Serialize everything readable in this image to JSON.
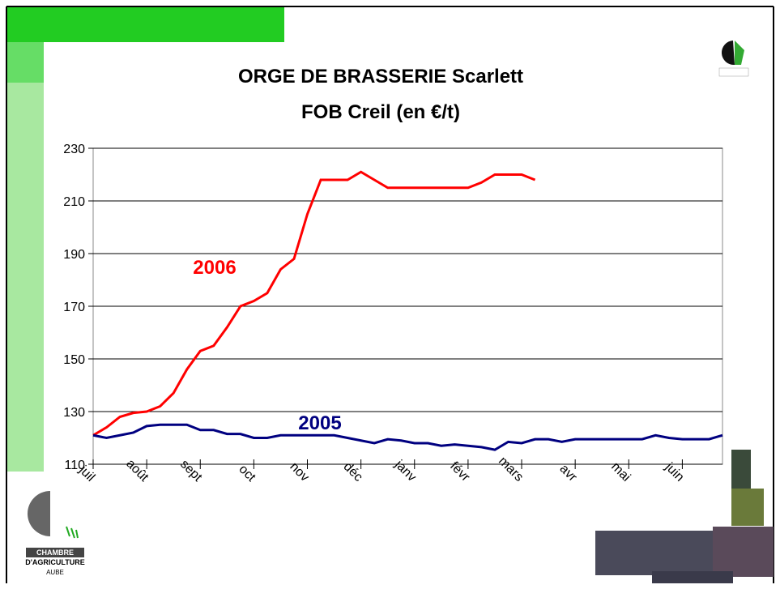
{
  "chart_data": {
    "type": "line",
    "title": "ORGE DE BRASSERIE Scarlett",
    "subtitle": "FOB Creil (en €/t)",
    "x": [
      0,
      0.25,
      0.5,
      0.75,
      1,
      1.25,
      1.5,
      1.75,
      2,
      2.25,
      2.5,
      2.75,
      3,
      3.25,
      3.5,
      3.75,
      4,
      4.25,
      4.5,
      4.75,
      5,
      5.25,
      5.5,
      5.75,
      6,
      6.25,
      6.5,
      6.75,
      7,
      7.25,
      7.5,
      7.75,
      8,
      8.25,
      8.5,
      8.75,
      9,
      9.25,
      9.5,
      9.75,
      10,
      10.25,
      10.5,
      10.75,
      11,
      11.25,
      11.5,
      11.75
    ],
    "series": [
      {
        "name": "2006",
        "color": "#ff0000",
        "values": [
          121,
          124,
          128,
          129.5,
          130,
          132,
          137,
          146,
          153,
          155,
          162,
          170,
          172,
          175,
          184,
          188,
          205,
          218,
          218,
          218,
          221,
          218,
          215,
          215,
          215,
          215,
          215,
          215,
          215,
          217,
          220,
          220,
          220,
          218,
          null,
          null,
          null,
          null,
          null,
          null,
          null,
          null,
          null,
          null,
          null,
          null,
          null,
          null
        ]
      },
      {
        "name": "2005",
        "color": "#000080",
        "values": [
          121,
          120,
          121,
          122,
          124.5,
          125,
          125,
          125,
          123,
          123,
          121.5,
          121.5,
          120,
          120,
          121,
          121,
          121,
          121,
          121,
          120,
          119,
          118,
          119.5,
          119,
          118,
          118,
          117,
          117.5,
          117,
          116.5,
          115.5,
          118.5,
          118,
          119.5,
          119.5,
          118.5,
          119.5,
          119.5,
          119.5,
          119.5,
          119.5,
          119.5,
          121,
          120,
          119.5,
          119.5,
          119.5,
          121
        ]
      }
    ],
    "xlim": [
      0,
      11.75
    ],
    "xticks": [
      {
        "value": 0,
        "label": "juil"
      },
      {
        "value": 1,
        "label": "août"
      },
      {
        "value": 2,
        "label": "sept"
      },
      {
        "value": 3,
        "label": "oct"
      },
      {
        "value": 4,
        "label": "nov"
      },
      {
        "value": 5,
        "label": "déc"
      },
      {
        "value": 6,
        "label": "janv"
      },
      {
        "value": 7,
        "label": "févr"
      },
      {
        "value": 8,
        "label": "mars"
      },
      {
        "value": 9,
        "label": "avr"
      },
      {
        "value": 10,
        "label": "mai"
      },
      {
        "value": 11,
        "label": "juin"
      }
    ],
    "ylim": [
      110,
      230
    ],
    "yticks": [
      110,
      130,
      150,
      170,
      190,
      210,
      230
    ],
    "grid": true
  },
  "logo": {
    "line1": "CHAMBRE",
    "line2": "D'AGRICULTURE",
    "line3": "AUBE"
  }
}
